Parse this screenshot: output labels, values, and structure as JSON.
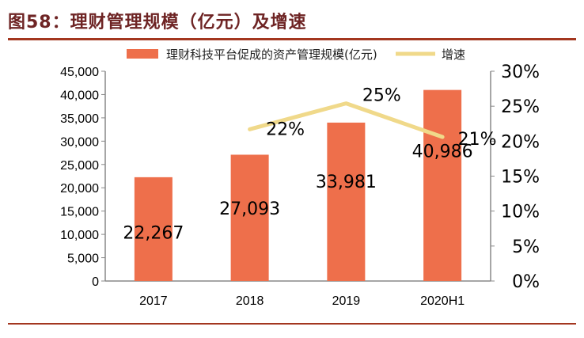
{
  "title": "图58：理财管理规模（亿元）及增速",
  "chart_data": {
    "type": "bar+line",
    "categories": [
      "2017",
      "2018",
      "2019",
      "2020H1"
    ],
    "series": [
      {
        "name": "理财科技平台促成的资产管理规模(亿元)",
        "type": "bar",
        "axis": "left",
        "color": "#ee6f4b",
        "values": [
          22267,
          27093,
          33981,
          40986
        ],
        "labels": [
          "22,267",
          "27,093",
          "33,981",
          "40,986"
        ]
      },
      {
        "name": "增速",
        "type": "line",
        "axis": "right",
        "color": "#f0d98a",
        "values": [
          null,
          21.7,
          25.4,
          20.6
        ],
        "labels": [
          "",
          "22%",
          "25%",
          "21%"
        ]
      }
    ],
    "left_axis": {
      "range": [
        0,
        45000
      ],
      "ticks": [
        "0",
        "5,000",
        "10,000",
        "15,000",
        "20,000",
        "25,000",
        "30,000",
        "35,000",
        "40,000",
        "45,000"
      ]
    },
    "right_axis": {
      "range": [
        0,
        30
      ],
      "ticks": [
        "0%",
        "5%",
        "10%",
        "15%",
        "20%",
        "25%",
        "30%"
      ]
    },
    "legend": "top",
    "grid": false
  }
}
